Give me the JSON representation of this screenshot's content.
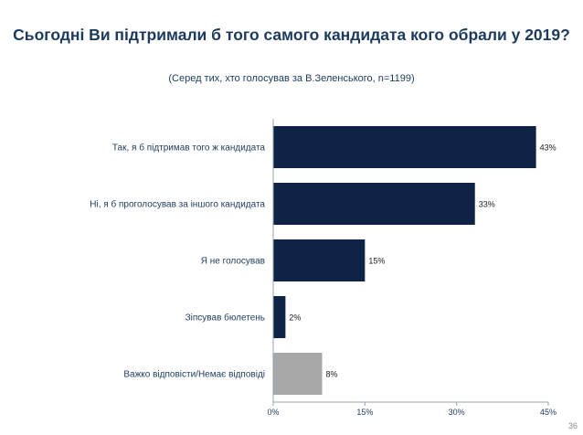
{
  "title": "Сьогодні Ви підтримали б того самого кандидата кого обрали у 2019?",
  "subtitle": "(Серед тих, хто голосував за В.Зеленського, n=1199)",
  "page_number": "36",
  "colors": {
    "primary": "#0e2345",
    "muted": "#a8a8a8",
    "text": "#1c3a5e"
  },
  "chart_data": {
    "type": "bar",
    "orientation": "horizontal",
    "categories": [
      "Так, я б підтримав того ж кандидата",
      "Ні, я б проголосував за іншого кандидата",
      "Я не голосував",
      "Зіпсував бюлетень",
      "Важко відповісти/Немає відповіді"
    ],
    "values": [
      43,
      33,
      15,
      2,
      8
    ],
    "labels": [
      "43%",
      "33%",
      "15%",
      "2%",
      "8%"
    ],
    "bar_colors": [
      "#0e2345",
      "#0e2345",
      "#0e2345",
      "#0e2345",
      "#a8a8a8"
    ],
    "xlim": [
      0,
      45
    ],
    "ticks": [
      0,
      15,
      30,
      45
    ],
    "tick_labels": [
      "0%",
      "15%",
      "30%",
      "45%"
    ]
  }
}
